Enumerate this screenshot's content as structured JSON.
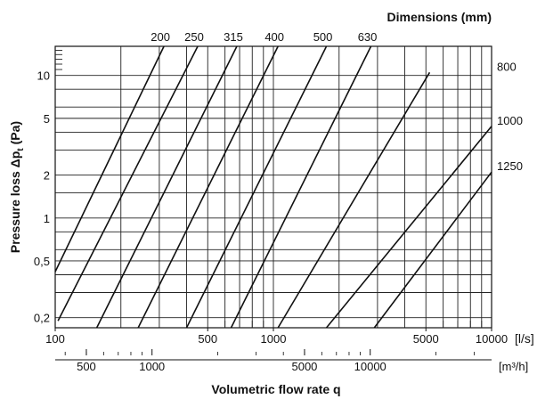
{
  "chart_data": {
    "type": "line",
    "title": "Dimensions (mm)",
    "xlabel": "Volumetric flow rate q",
    "ylabel_main": "Pressure loss Δp",
    "ylabel_sub": "t",
    "ylabel_unit": "(Pa)",
    "x_unit_ls": "[l/s]",
    "x_unit_m3h": "[m³/h]",
    "x_scale": "log",
    "y_scale": "log",
    "xlim": [
      100,
      10000
    ],
    "ylim": [
      0.17,
      16
    ],
    "x_ticks": [
      100,
      500,
      1000,
      5000,
      10000
    ],
    "x_tick_labels": [
      "100",
      "500",
      "1000",
      "5000",
      "10000"
    ],
    "y_ticks": [
      0.2,
      0.5,
      1,
      2,
      5,
      10
    ],
    "y_tick_labels": [
      "0,2",
      "0,5",
      "1",
      "2",
      "5",
      "10"
    ],
    "x2_ticks_m3h": [
      500,
      1000,
      5000,
      10000
    ],
    "x2_tick_labels": [
      "500",
      "1000",
      "5000",
      "10000"
    ],
    "grid": true,
    "series": [
      {
        "name": "200",
        "x": [
          100,
          315
        ],
        "y": [
          0.42,
          16
        ]
      },
      {
        "name": "250",
        "x": [
          103,
          450
        ],
        "y": [
          0.19,
          16
        ]
      },
      {
        "name": "315",
        "x": [
          155,
          680
        ],
        "y": [
          0.17,
          16
        ]
      },
      {
        "name": "400",
        "x": [
          240,
          1050
        ],
        "y": [
          0.17,
          16
        ]
      },
      {
        "name": "500",
        "x": [
          400,
          1750
        ],
        "y": [
          0.17,
          16
        ]
      },
      {
        "name": "630",
        "x": [
          640,
          2800
        ],
        "y": [
          0.17,
          16
        ]
      },
      {
        "name": "800",
        "x": [
          1050,
          5200
        ],
        "y": [
          0.17,
          10.5
        ]
      },
      {
        "name": "1000",
        "x": [
          1750,
          10000
        ],
        "y": [
          0.17,
          4.4
        ]
      },
      {
        "name": "1250",
        "x": [
          2900,
          10000
        ],
        "y": [
          0.17,
          2.1
        ]
      }
    ]
  }
}
